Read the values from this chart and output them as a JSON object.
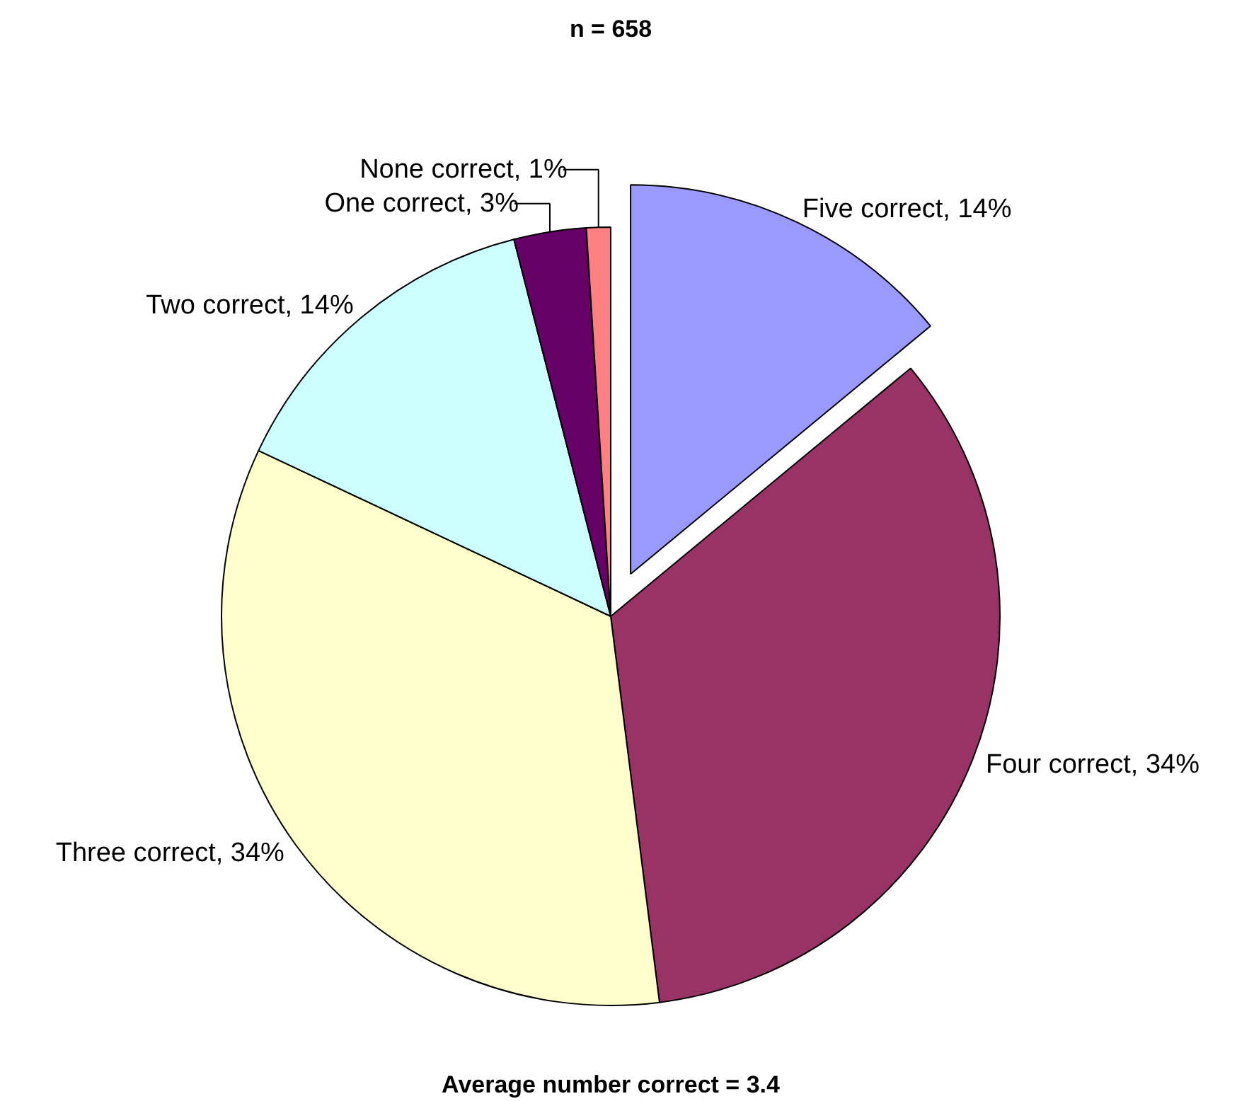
{
  "chart_data": {
    "type": "pie",
    "title": "n = 658",
    "categories": [
      "Five correct",
      "Four correct",
      "Three correct",
      "Two correct",
      "One correct",
      "None correct"
    ],
    "values": [
      14,
      34,
      34,
      14,
      3,
      1
    ],
    "value_labels": [
      "14%",
      "34%",
      "34%",
      "14%",
      "3%",
      "1%"
    ],
    "colors": [
      "#9999ff",
      "#993366",
      "#ffffcc",
      "#ccffff",
      "#660066",
      "#ff8080"
    ],
    "annotations": [
      "Average number correct = 3.4"
    ]
  }
}
